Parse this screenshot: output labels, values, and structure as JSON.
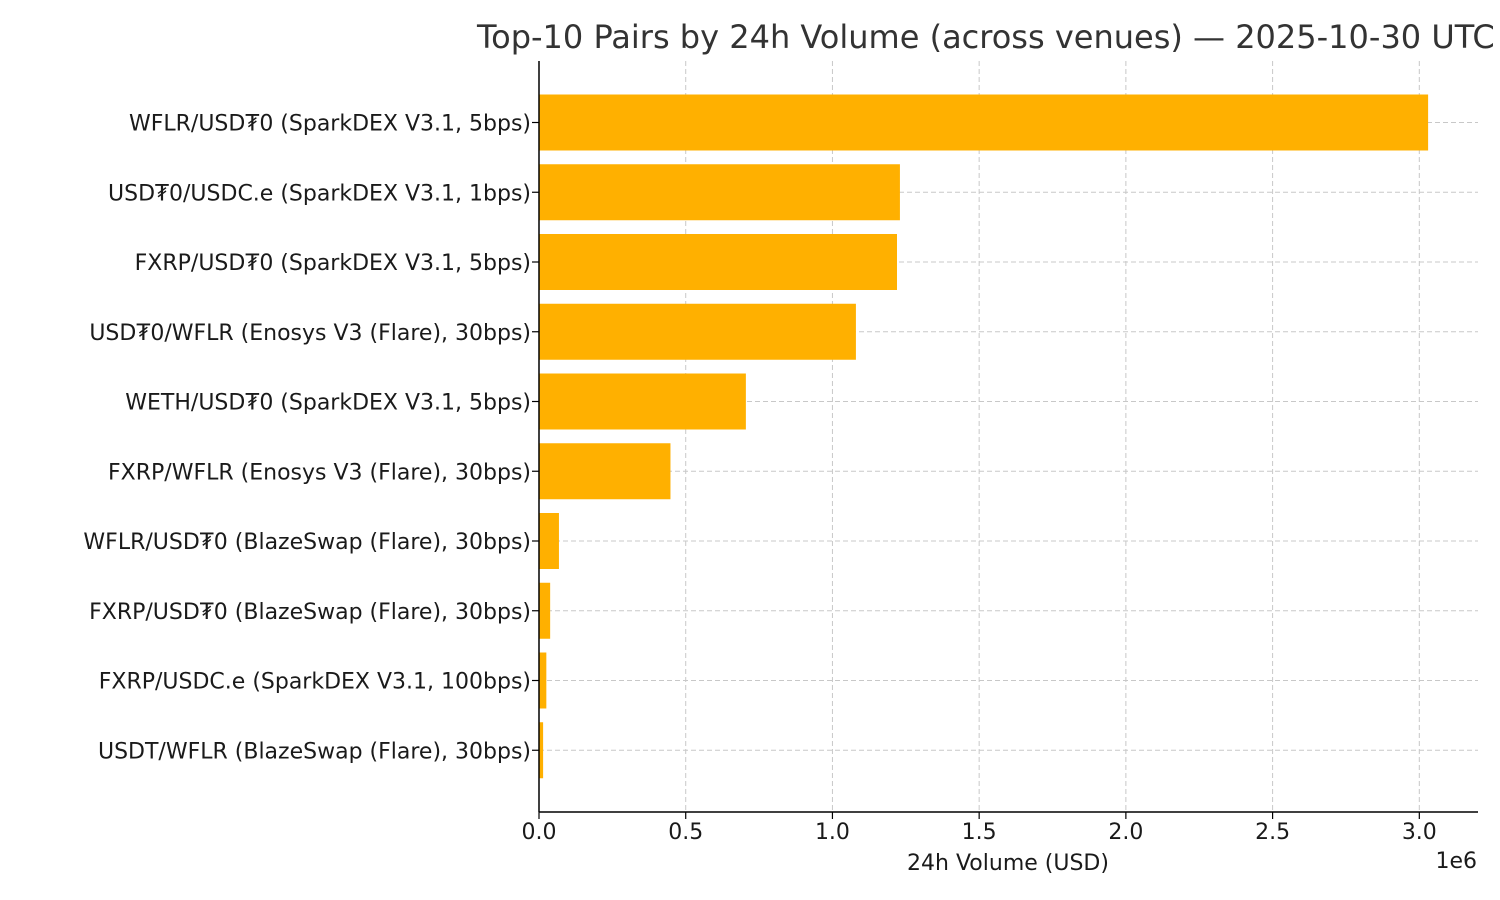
{
  "chart_data": {
    "type": "bar",
    "orientation": "horizontal",
    "title": "Top-10 Pairs by 24h Volume (across venues) — 2025-10-30 UTC",
    "xlabel": "24h Volume (USD)",
    "ylabel": "",
    "x_offset_label": "1e6",
    "xlim": [
      0,
      3.2
    ],
    "xticks": [
      0.0,
      0.5,
      1.0,
      1.5,
      2.0,
      2.5,
      3.0
    ],
    "xtick_labels": [
      "0.0",
      "0.5",
      "1.0",
      "1.5",
      "2.0",
      "2.5",
      "3.0"
    ],
    "grid": true,
    "bar_color": "#ffb000",
    "categories": [
      "WFLR/USD₮0 (SparkDEX V3.1, 5bps)",
      "USD₮0/USDC.e (SparkDEX V3.1, 1bps)",
      "FXRP/USD₮0 (SparkDEX V3.1, 5bps)",
      "USD₮0/WFLR (Enosys V3 (Flare), 30bps)",
      "WETH/USD₮0 (SparkDEX V3.1, 5bps)",
      "FXRP/WFLR (Enosys V3 (Flare), 30bps)",
      "WFLR/USD₮0 (BlazeSwap (Flare), 30bps)",
      "FXRP/USD₮0 (BlazeSwap (Flare), 30bps)",
      "FXRP/USDC.e (SparkDEX V3.1, 100bps)",
      "USDT/WFLR (BlazeSwap (Flare), 30bps)"
    ],
    "values": [
      3030000,
      1230000,
      1220000,
      1080000,
      705000,
      448000,
      68000,
      38000,
      25000,
      14000
    ]
  }
}
